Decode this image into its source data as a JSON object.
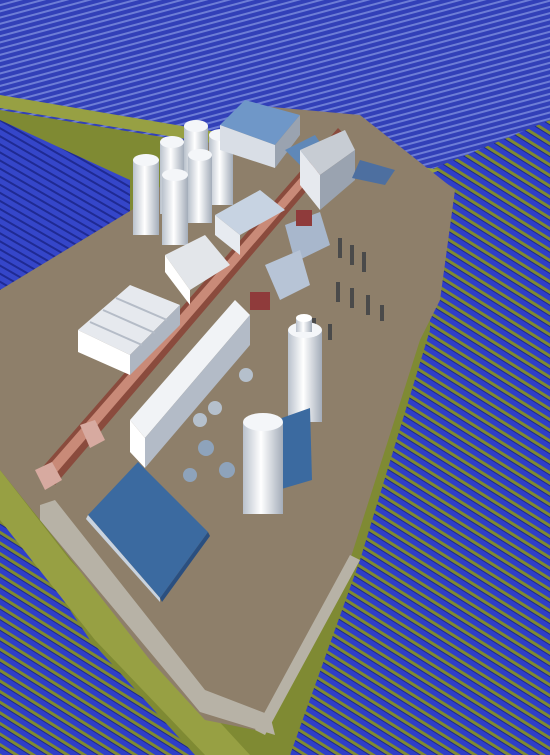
{
  "image": {
    "kind": "aerial-rendering",
    "colors": {
      "background": "#ffffff",
      "grass": "#8f9a3c",
      "grass_dark": "#6f7a2a",
      "panel": "#2f3fc8",
      "panel_dark": "#1c2690",
      "pad": "#8e7f6a",
      "pad_edge": "#b7b2a6",
      "building": "#d9dee6",
      "building_shade": "#9aa3b0",
      "roof_blue": "#5f88b8",
      "pool": "#3b6aa0",
      "pipe": "#8a4b3d"
    }
  }
}
